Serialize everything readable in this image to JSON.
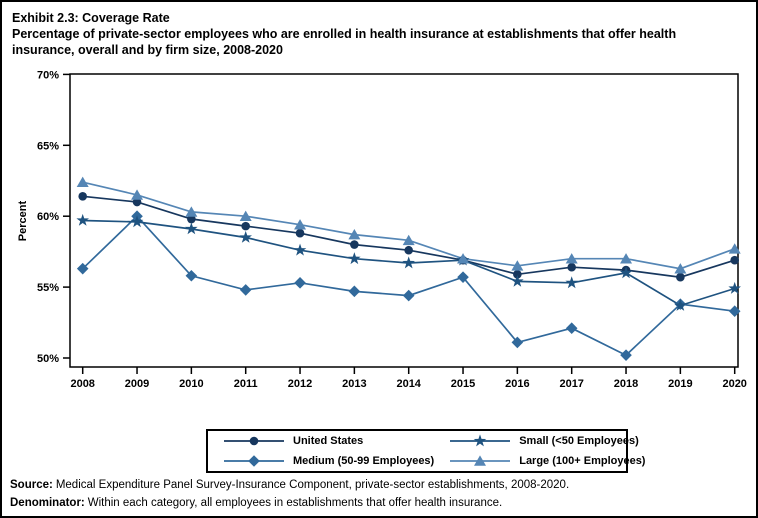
{
  "header": {
    "title": "Exhibit 2.3: Coverage Rate",
    "subtitle_line1": "Percentage of private-sector employees who are enrolled in health insurance at establishments that offer health",
    "subtitle_line2": "insurance, overall and by firm size, 2008-2020"
  },
  "chart_data": {
    "type": "line",
    "title": "Exhibit 2.3: Coverage Rate",
    "subtitle": "Percentage of private-sector employees who are enrolled in health insurance at establishments that offer health insurance, overall and by firm size, 2008-2020",
    "ylabel": "Percent",
    "xlabel": "",
    "categories": [
      "2008",
      "2009",
      "2010",
      "2011",
      "2012",
      "2013",
      "2014",
      "2015",
      "2016",
      "2017",
      "2018",
      "2019",
      "2020"
    ],
    "y_ticks": [
      {
        "label": "70%",
        "value": 70
      },
      {
        "label": "65%",
        "value": 65
      },
      {
        "label": "60%",
        "value": 60
      },
      {
        "label": "55%",
        "value": 55
      },
      {
        "label": "50%",
        "value": 50
      }
    ],
    "ylim": [
      50,
      70
    ],
    "grid": false,
    "legend_position": "bottom",
    "series": [
      {
        "name": "United States",
        "marker": "circle",
        "color": "#17375E",
        "values": [
          61.4,
          61.0,
          59.8,
          59.3,
          58.8,
          58.0,
          57.6,
          56.9,
          55.9,
          56.4,
          56.2,
          55.7,
          56.9
        ]
      },
      {
        "name": "Medium (50-99 Employees)",
        "marker": "diamond",
        "color": "#31699B",
        "values": [
          56.3,
          60.0,
          55.8,
          54.8,
          55.3,
          54.7,
          54.4,
          55.7,
          51.1,
          52.1,
          50.2,
          53.8,
          53.3
        ]
      },
      {
        "name": "Small (<50 Employees)",
        "marker": "star",
        "color": "#1F5380",
        "values": [
          59.7,
          59.6,
          59.1,
          58.5,
          57.6,
          57.0,
          56.7,
          56.9,
          55.4,
          55.3,
          56.0,
          53.7,
          54.9
        ]
      },
      {
        "name": "Large (100+ Employees)",
        "marker": "triangle",
        "color": "#5586B5",
        "values": [
          62.4,
          61.5,
          60.3,
          60.0,
          59.4,
          58.7,
          58.3,
          57.0,
          56.5,
          57.0,
          57.0,
          56.3,
          57.7
        ]
      }
    ]
  },
  "footer": {
    "source_label": "Source:",
    "source_text": "Medical Expenditure Panel Survey-Insurance Component, private-sector establishments, 2008-2020.",
    "denominator_label": "Denominator:",
    "denominator_text": "Within each category, all employees in establishments that offer health insurance."
  }
}
